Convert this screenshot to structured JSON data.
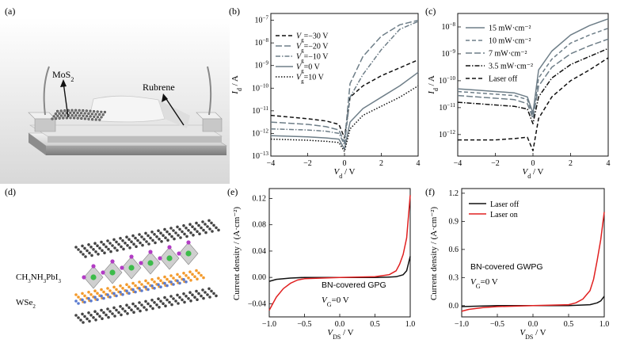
{
  "panel_labels": [
    "(a)",
    "(b)",
    "(c)",
    "(d)",
    "(e)",
    "(f)"
  ],
  "illustration_a": {
    "label_mos2": "MoS2",
    "label_rubrene": "Rubrene"
  },
  "illustration_d": {
    "label_top": "CH3NH3PbI3",
    "label_bottom": "WSe2"
  },
  "colors": {
    "gray_curve": "#6e7e88",
    "black": "#111111",
    "red": "#e02020"
  },
  "chart_data": [
    {
      "panel": "b",
      "type": "line",
      "y_scale": "log",
      "xlabel": "Vd / V",
      "ylabel": "Id / A",
      "xlim": [
        -4,
        4
      ],
      "ylim_exp": [
        -13,
        -6.7
      ],
      "x_ticks": [
        "-4",
        "-2",
        "0",
        "2",
        "4"
      ],
      "y_ticks": [
        "10-7",
        "10-8",
        "10-9",
        "10-10",
        "10-11",
        "10-12",
        "10-13"
      ],
      "legend_position": "left",
      "series": [
        {
          "name": "Vg=-30 V",
          "legend": "Vg=−30 V",
          "style": "dash",
          "color": "#111111",
          "x": [
            -4,
            -2,
            -1,
            -0.3,
            0,
            0.3,
            1,
            2,
            3,
            4
          ],
          "y_exp": [
            -11.2,
            -11.35,
            -11.45,
            -11.6,
            -12.2,
            -10.4,
            -9.9,
            -9.45,
            -9.1,
            -8.75
          ]
        },
        {
          "name": "Vg=-20 V",
          "legend": "Vg=−20 V",
          "style": "longdash",
          "color": "#6e7e88",
          "x": [
            -4,
            -2,
            -1,
            -0.3,
            0,
            0.3,
            1,
            2,
            3,
            4
          ],
          "y_exp": [
            -11.5,
            -11.6,
            -11.7,
            -11.85,
            -12.4,
            -9.8,
            -8.6,
            -7.7,
            -7.2,
            -7.0
          ]
        },
        {
          "name": "Vg=-10 V",
          "legend": "Vg=−10 V",
          "style": "dashdot",
          "color": "#6e7e88",
          "x": [
            -4,
            -2,
            -1,
            -0.3,
            0,
            0.3,
            1,
            2,
            3,
            4
          ],
          "y_exp": [
            -11.8,
            -11.85,
            -11.9,
            -12.0,
            -12.5,
            -10.4,
            -9.4,
            -8.3,
            -7.4,
            -7.05
          ]
        },
        {
          "name": "Vg=0 V",
          "legend": "Vg=0 V",
          "style": "solid",
          "color": "#6e7e88",
          "x": [
            -4,
            -2,
            -1,
            -0.3,
            0,
            0.3,
            1,
            2,
            3,
            4
          ],
          "y_exp": [
            -12.1,
            -12.15,
            -12.2,
            -12.25,
            -12.7,
            -11.5,
            -10.9,
            -10.4,
            -9.9,
            -9.3
          ]
        },
        {
          "name": "Vg=10 V",
          "legend": "Vg=10 V",
          "style": "dot",
          "color": "#111111",
          "x": [
            -4,
            -2,
            -1,
            -0.3,
            0,
            0.3,
            1,
            2,
            3,
            4
          ],
          "y_exp": [
            -12.25,
            -12.3,
            -12.35,
            -12.4,
            -12.8,
            -11.8,
            -11.2,
            -10.8,
            -10.4,
            -9.9
          ]
        }
      ]
    },
    {
      "panel": "c",
      "type": "line",
      "y_scale": "log",
      "xlabel": "Vd / V",
      "ylabel": "Id / A",
      "xlim": [
        -4,
        4
      ],
      "ylim_exp": [
        -12.8,
        -7.5
      ],
      "x_ticks": [
        "-4",
        "-2",
        "0",
        "2",
        "4"
      ],
      "y_ticks": [
        "10-8",
        "10-9",
        "10-10",
        "10-11",
        "10-12"
      ],
      "legend_position": "top-left",
      "series": [
        {
          "name": "15 mW·cm−2",
          "legend": "15 mW·cm⁻²",
          "style": "solid",
          "color": "#6e7e88",
          "x": [
            -4,
            -3,
            -2,
            -1,
            -0.3,
            0,
            0.3,
            1,
            2,
            3,
            4
          ],
          "y_exp": [
            -10.3,
            -10.35,
            -10.4,
            -10.45,
            -10.6,
            -11.2,
            -9.6,
            -8.9,
            -8.3,
            -7.95,
            -7.7
          ]
        },
        {
          "name": "10 mW·cm−2",
          "legend": "10 mW·cm⁻²",
          "style": "dash",
          "color": "#6e7e88",
          "x": [
            -4,
            -3,
            -2,
            -1,
            -0.3,
            0,
            0.3,
            1,
            2,
            3,
            4
          ],
          "y_exp": [
            -10.4,
            -10.45,
            -10.5,
            -10.55,
            -10.7,
            -11.3,
            -9.9,
            -9.2,
            -8.6,
            -8.3,
            -8.05
          ]
        },
        {
          "name": "7 mW·cm−2",
          "legend": "7 mW·cm⁻²",
          "style": "longdash",
          "color": "#6e7e88",
          "x": [
            -4,
            -3,
            -2,
            -1,
            -0.3,
            0,
            0.3,
            1,
            2,
            3,
            4
          ],
          "y_exp": [
            -10.55,
            -10.6,
            -10.65,
            -10.7,
            -10.85,
            -11.4,
            -10.2,
            -9.5,
            -9.0,
            -8.7,
            -8.45
          ]
        },
        {
          "name": "3.5 mW·cm−2",
          "legend": "3.5 mW·cm⁻²",
          "style": "dashdot",
          "color": "#111111",
          "x": [
            -4,
            -3,
            -2,
            -1,
            -0.3,
            0,
            0.3,
            1,
            2,
            3,
            4
          ],
          "y_exp": [
            -10.8,
            -10.85,
            -10.9,
            -10.95,
            -11.05,
            -11.6,
            -10.6,
            -9.9,
            -9.4,
            -9.1,
            -8.8
          ]
        },
        {
          "name": "Laser off",
          "legend": "Laser off",
          "style": "dash",
          "color": "#111111",
          "x": [
            -4,
            -3,
            -2,
            -1,
            -0.3,
            0,
            0.3,
            1,
            2,
            3,
            4
          ],
          "y_exp": [
            -12.2,
            -12.2,
            -12.2,
            -12.15,
            -12.1,
            -12.6,
            -11.4,
            -10.6,
            -10.0,
            -9.6,
            -9.15
          ]
        }
      ]
    },
    {
      "panel": "e",
      "type": "line",
      "xlabel": "VDS / V",
      "ylabel": "Current density / (A·cm−2)",
      "annotation": "BN-covered GPG",
      "annotation_sub": "VG=0 V",
      "xlim": [
        -1.0,
        1.0
      ],
      "ylim": [
        -0.06,
        0.135
      ],
      "x_ticks": [
        "-1.0",
        "-0.5",
        "0.0",
        "0.5",
        "1.0"
      ],
      "y_ticks": [
        "0.12",
        "0.08",
        "0.04",
        "0.00",
        "-0.04"
      ],
      "series": [
        {
          "name": "Laser off",
          "color": "#111111",
          "x": [
            -1.0,
            -0.9,
            -0.7,
            -0.5,
            0.0,
            0.5,
            0.7,
            0.8,
            0.9,
            0.95,
            1.0
          ],
          "y": [
            -0.006,
            -0.003,
            -0.001,
            0.0,
            0.0,
            0.0,
            0.0005,
            0.001,
            0.004,
            0.01,
            0.032
          ]
        },
        {
          "name": "Laser on",
          "color": "#e02020",
          "x": [
            -1.0,
            -0.95,
            -0.9,
            -0.8,
            -0.7,
            -0.6,
            -0.5,
            0.0,
            0.5,
            0.7,
            0.8,
            0.85,
            0.9,
            0.95,
            1.0
          ],
          "y": [
            -0.05,
            -0.04,
            -0.03,
            -0.017,
            -0.009,
            -0.004,
            -0.002,
            0.0,
            0.001,
            0.004,
            0.01,
            0.02,
            0.035,
            0.06,
            0.125
          ]
        }
      ]
    },
    {
      "panel": "f",
      "type": "line",
      "xlabel": "VDS / V",
      "ylabel": "Current density / (A·cm−2)",
      "annotation": "BN-covered GWPG",
      "annotation_sub": "VG=0 V",
      "xlim": [
        -1.0,
        1.0
      ],
      "ylim": [
        -0.12,
        1.25
      ],
      "x_ticks": [
        "-1.0",
        "-0.5",
        "0.0",
        "0.5",
        "1.0"
      ],
      "y_ticks": [
        "1.2",
        "0.9",
        "0.6",
        "0.3",
        "0.0"
      ],
      "legend_position": "top-left",
      "series": [
        {
          "name": "Laser off",
          "color": "#111111",
          "x": [
            -1.0,
            -0.5,
            0.0,
            0.5,
            0.8,
            0.9,
            0.95,
            1.0
          ],
          "y": [
            -0.01,
            0.0,
            0.0,
            0.0,
            0.01,
            0.03,
            0.05,
            0.1
          ]
        },
        {
          "name": "Laser on",
          "color": "#e02020",
          "x": [
            -1.0,
            -0.9,
            -0.7,
            -0.5,
            0.0,
            0.5,
            0.6,
            0.7,
            0.8,
            0.85,
            0.9,
            0.95,
            1.0
          ],
          "y": [
            -0.06,
            -0.04,
            -0.02,
            -0.01,
            0.0,
            0.01,
            0.03,
            0.07,
            0.16,
            0.28,
            0.48,
            0.7,
            1.0
          ]
        }
      ]
    }
  ]
}
